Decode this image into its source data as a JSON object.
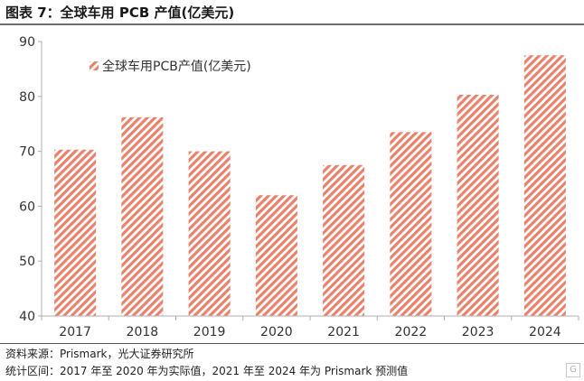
{
  "figure": {
    "title": "图表 7：全球车用 PCB 产值(亿美元)",
    "source_note": "资料来源：Prismark，光大证券研究所",
    "range_note": "统计区间：2017 年至 2020 年为实际值，2021 年至 2024 年为  Prismark 预测值"
  },
  "colors": {
    "bar_stripe": "#e8826c",
    "bar_background": "#ffffff",
    "axis": "#b0b0b0",
    "title_rule": "#6e6e6e"
  },
  "chart_data": {
    "type": "bar",
    "title": "",
    "xlabel": "",
    "ylabel": "",
    "categories": [
      "2017",
      "2018",
      "2019",
      "2020",
      "2021",
      "2022",
      "2023",
      "2024"
    ],
    "series": [
      {
        "name": "全球车用PCB产值(亿美元)",
        "values": [
          70.3,
          76.2,
          70.0,
          62.0,
          67.5,
          73.5,
          80.3,
          87.5
        ]
      }
    ],
    "ylim": [
      40,
      90
    ],
    "yticks": [
      "40",
      "50",
      "60",
      "70",
      "80",
      "90"
    ],
    "grid": false,
    "legend_position": "top-left",
    "bar_fill": "diagonal-hatch"
  }
}
